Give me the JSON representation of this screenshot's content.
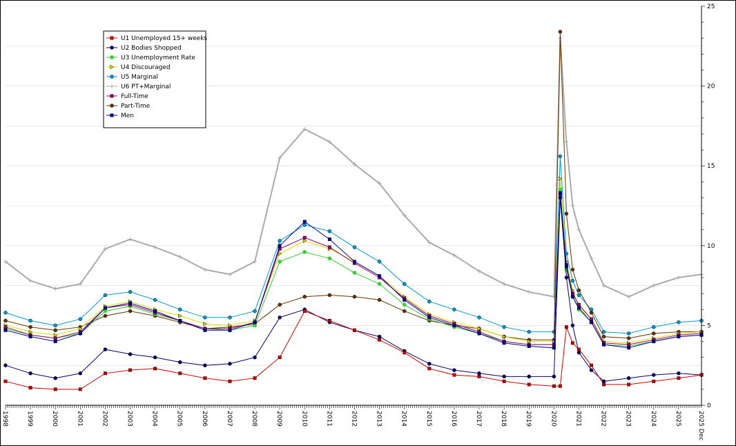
{
  "chart_data": {
    "type": "line",
    "title": "",
    "xlabel": "",
    "ylabel": "",
    "x_tick_labels": [
      "1998",
      "1999",
      "2000",
      "2001",
      "2002",
      "2003",
      "2004",
      "2005",
      "2006",
      "2007",
      "2008",
      "2009",
      "2010",
      "2011",
      "2012",
      "2013",
      "2014",
      "2015",
      "2016",
      "2017",
      "2018",
      "2019",
      "2020",
      "2021",
      "2022",
      "2023",
      "2024",
      "2025",
      "2025 Dec"
    ],
    "xlim": [
      1998.0,
      2025.917
    ],
    "ylim": [
      0,
      25
    ],
    "y_ticks": [
      0,
      5,
      10,
      15,
      20,
      25
    ],
    "y_axis_side": "right",
    "grid": true,
    "legend_position": "top-left",
    "series": [
      {
        "name": "U1 Unemployed 15+ weeks",
        "color": "#cc0000",
        "marker": "square",
        "x": [
          1998,
          1999,
          2000,
          2001,
          2002,
          2003,
          2004,
          2005,
          2006,
          2007,
          2008,
          2009,
          2010,
          2011,
          2012,
          2013,
          2014,
          2015,
          2016,
          2017,
          2018,
          2019,
          2020,
          2020.25,
          2020.5,
          2020.75,
          2021,
          2021.5,
          2022,
          2023,
          2024,
          2025,
          2025.917
        ],
        "y": [
          1.5,
          1.1,
          1.0,
          1.0,
          2.0,
          2.2,
          2.3,
          2.0,
          1.7,
          1.5,
          1.7,
          3.0,
          5.9,
          5.3,
          4.7,
          4.1,
          3.3,
          2.3,
          1.9,
          1.8,
          1.5,
          1.3,
          1.2,
          1.2,
          4.9,
          3.9,
          3.5,
          2.5,
          1.3,
          1.3,
          1.5,
          1.7,
          1.9
        ]
      },
      {
        "name": "U2 Bodies Shopped",
        "color": "#000066",
        "marker": "circle",
        "x": [
          1998,
          1999,
          2000,
          2001,
          2002,
          2003,
          2004,
          2005,
          2006,
          2007,
          2008,
          2009,
          2010,
          2011,
          2012,
          2013,
          2014,
          2015,
          2016,
          2017,
          2018,
          2019,
          2020,
          2020.25,
          2020.5,
          2020.75,
          2021,
          2021.5,
          2022,
          2023,
          2024,
          2025,
          2025.917
        ],
        "y": [
          2.5,
          2.0,
          1.7,
          2.0,
          3.5,
          3.2,
          3.0,
          2.7,
          2.5,
          2.6,
          3.0,
          5.5,
          6.0,
          5.2,
          4.7,
          4.3,
          3.4,
          2.6,
          2.2,
          2.0,
          1.8,
          1.8,
          1.8,
          13.0,
          8.0,
          5.0,
          3.3,
          2.2,
          1.5,
          1.7,
          1.9,
          2.0,
          1.9
        ]
      },
      {
        "name": "U3 Unemployment Rate",
        "color": "#33cc33",
        "marker": "star",
        "x": [
          1998,
          1999,
          2000,
          2001,
          2002,
          2003,
          2004,
          2005,
          2006,
          2007,
          2008,
          2009,
          2010,
          2011,
          2012,
          2013,
          2014,
          2015,
          2016,
          2017,
          2018,
          2019,
          2020,
          2020.25,
          2020.5,
          2020.75,
          2021,
          2021.5,
          2022,
          2023,
          2024,
          2025,
          2025.917
        ],
        "y": [
          4.8,
          4.4,
          4.2,
          4.5,
          5.9,
          6.2,
          5.7,
          5.3,
          4.8,
          4.7,
          5.0,
          9.0,
          9.6,
          9.2,
          8.3,
          7.6,
          6.3,
          5.4,
          4.9,
          4.5,
          4.0,
          3.8,
          3.8,
          13.5,
          8.5,
          6.8,
          6.0,
          5.2,
          3.8,
          3.7,
          4.0,
          4.3,
          4.4
        ]
      },
      {
        "name": "U4 Discouraged",
        "color": "#dddd00",
        "marker": "triangle",
        "x": [
          1998,
          1999,
          2000,
          2001,
          2002,
          2003,
          2004,
          2005,
          2006,
          2007,
          2008,
          2009,
          2010,
          2011,
          2012,
          2013,
          2014,
          2015,
          2016,
          2017,
          2018,
          2019,
          2020,
          2020.25,
          2020.5,
          2020.75,
          2021,
          2021.5,
          2022,
          2023,
          2024,
          2025,
          2025.917
        ],
        "y": [
          5.0,
          4.6,
          4.4,
          4.8,
          6.2,
          6.5,
          6.0,
          5.6,
          5.1,
          5.0,
          5.3,
          9.5,
          10.3,
          9.8,
          9.0,
          8.1,
          6.8,
          5.7,
          5.2,
          4.8,
          4.3,
          4.0,
          4.0,
          14.2,
          9.0,
          7.2,
          6.2,
          5.4,
          4.0,
          3.9,
          4.2,
          4.5,
          4.6
        ]
      },
      {
        "name": "U5 Marginal",
        "color": "#0099cc",
        "marker": "circle",
        "x": [
          1998,
          1999,
          2000,
          2001,
          2002,
          2003,
          2004,
          2005,
          2006,
          2007,
          2008,
          2009,
          2010,
          2011,
          2012,
          2013,
          2014,
          2015,
          2016,
          2017,
          2018,
          2019,
          2020,
          2020.25,
          2020.5,
          2020.75,
          2021,
          2021.5,
          2022,
          2023,
          2024,
          2025,
          2025.917
        ],
        "y": [
          5.8,
          5.3,
          5.0,
          5.4,
          6.9,
          7.1,
          6.6,
          6.0,
          5.5,
          5.5,
          5.9,
          10.3,
          11.3,
          10.9,
          9.9,
          9.0,
          7.6,
          6.5,
          6.0,
          5.5,
          4.9,
          4.6,
          4.6,
          15.6,
          9.5,
          7.8,
          6.9,
          6.0,
          4.6,
          4.5,
          4.9,
          5.2,
          5.3
        ]
      },
      {
        "name": "U6 PT+Marginal",
        "color": "#aaaaaa",
        "marker": "plus",
        "x": [
          1998,
          1999,
          2000,
          2001,
          2002,
          2003,
          2004,
          2005,
          2006,
          2007,
          2008,
          2009,
          2010,
          2011,
          2012,
          2013,
          2014,
          2015,
          2016,
          2017,
          2018,
          2019,
          2020,
          2020.25,
          2020.5,
          2020.75,
          2021,
          2021.5,
          2022,
          2023,
          2024,
          2025,
          2025.917
        ],
        "y": [
          9.0,
          7.8,
          7.3,
          7.6,
          9.8,
          10.4,
          9.9,
          9.3,
          8.5,
          8.2,
          9.0,
          15.5,
          17.3,
          16.5,
          15.1,
          13.9,
          11.9,
          10.2,
          9.4,
          8.4,
          7.6,
          7.1,
          6.8,
          23.0,
          16.5,
          12.5,
          11.0,
          9.2,
          7.5,
          6.8,
          7.5,
          8.0,
          8.2
        ]
      },
      {
        "name": "Full-Time",
        "color": "#990066",
        "marker": "square",
        "x": [
          1998,
          1999,
          2000,
          2001,
          2002,
          2003,
          2004,
          2005,
          2006,
          2007,
          2008,
          2009,
          2010,
          2011,
          2012,
          2013,
          2014,
          2015,
          2016,
          2017,
          2018,
          2019,
          2020,
          2020.25,
          2020.5,
          2020.75,
          2021,
          2021.5,
          2022,
          2023,
          2024,
          2025,
          2025.917
        ],
        "y": [
          4.9,
          4.4,
          4.2,
          4.6,
          6.1,
          6.3,
          5.8,
          5.3,
          4.8,
          4.8,
          5.2,
          9.8,
          10.5,
          9.9,
          8.9,
          8.0,
          6.7,
          5.6,
          5.1,
          4.6,
          4.0,
          3.8,
          3.8,
          13.2,
          8.8,
          7.0,
          6.3,
          5.4,
          3.9,
          3.8,
          4.1,
          4.4,
          4.5
        ]
      },
      {
        "name": "Part-Time",
        "color": "#663300",
        "marker": "circle",
        "x": [
          1998,
          1999,
          2000,
          2001,
          2002,
          2003,
          2004,
          2005,
          2006,
          2007,
          2008,
          2009,
          2010,
          2011,
          2012,
          2013,
          2014,
          2015,
          2016,
          2017,
          2018,
          2019,
          2020,
          2020.25,
          2020.5,
          2020.75,
          2021,
          2021.5,
          2022,
          2023,
          2024,
          2025,
          2025.917
        ],
        "y": [
          5.3,
          4.9,
          4.7,
          4.9,
          5.6,
          5.9,
          5.6,
          5.2,
          4.8,
          4.9,
          5.1,
          6.3,
          6.8,
          6.9,
          6.8,
          6.6,
          5.9,
          5.3,
          5.0,
          4.8,
          4.3,
          4.1,
          4.1,
          23.4,
          12.0,
          8.5,
          7.2,
          5.8,
          4.3,
          4.2,
          4.5,
          4.6,
          4.6
        ]
      },
      {
        "name": "Men",
        "color": "#000099",
        "marker": "square",
        "x": [
          1998,
          1999,
          2000,
          2001,
          2002,
          2003,
          2004,
          2005,
          2006,
          2007,
          2008,
          2009,
          2010,
          2011,
          2012,
          2013,
          2014,
          2015,
          2016,
          2017,
          2018,
          2019,
          2020,
          2020.25,
          2020.5,
          2020.75,
          2021,
          2021.5,
          2022,
          2023,
          2024,
          2025,
          2025.917
        ],
        "y": [
          4.7,
          4.3,
          4.0,
          4.5,
          6.1,
          6.4,
          5.9,
          5.3,
          4.7,
          4.7,
          5.2,
          10.0,
          11.5,
          10.4,
          9.0,
          8.1,
          6.6,
          5.5,
          5.0,
          4.5,
          3.9,
          3.7,
          3.6,
          13.3,
          8.7,
          6.8,
          6.1,
          5.2,
          3.8,
          3.6,
          4.0,
          4.3,
          4.4
        ]
      }
    ]
  }
}
